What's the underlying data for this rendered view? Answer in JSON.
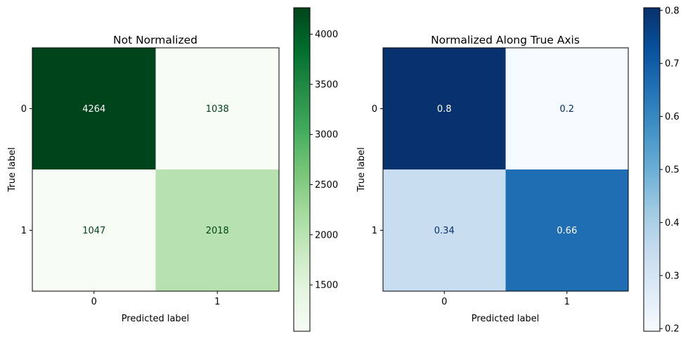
{
  "chart_data": [
    {
      "type": "heatmap",
      "title": "Not Normalized",
      "xlabel": "Predicted label",
      "ylabel": "True label",
      "x_categories": [
        "0",
        "1"
      ],
      "y_categories": [
        "0",
        "1"
      ],
      "matrix": [
        [
          4264,
          1038
        ],
        [
          1047,
          2018
        ]
      ],
      "cell_labels": [
        [
          "4264",
          "1038"
        ],
        [
          "1047",
          "2018"
        ]
      ],
      "colormap": "Greens",
      "colorbar": {
        "range": [
          1038,
          4264
        ],
        "ticks": [
          1500,
          2000,
          2500,
          3000,
          3500,
          4000
        ],
        "tick_labels": [
          "1500",
          "2000",
          "2500",
          "3000",
          "3500",
          "4000"
        ]
      },
      "colors": {
        "low": "#f7fcf5",
        "high": "#00441b"
      },
      "text_colors": {
        "dark": "#ffffff",
        "light": "#00441b"
      }
    },
    {
      "type": "heatmap",
      "title": "Normalized Along True Axis",
      "xlabel": "Predicted label",
      "ylabel": "True label",
      "x_categories": [
        "0",
        "1"
      ],
      "y_categories": [
        "0",
        "1"
      ],
      "matrix": [
        [
          0.8,
          0.2
        ],
        [
          0.34,
          0.66
        ]
      ],
      "cell_labels": [
        [
          "0.8",
          "0.2"
        ],
        [
          "0.34",
          "0.66"
        ]
      ],
      "colormap": "Blues",
      "colorbar": {
        "range": [
          0.195,
          0.805
        ],
        "ticks": [
          0.2,
          0.3,
          0.4,
          0.5,
          0.6,
          0.7,
          0.8
        ],
        "tick_labels": [
          "0.2",
          "0.3",
          "0.4",
          "0.5",
          "0.6",
          "0.7",
          "0.8"
        ]
      },
      "colors": {
        "low": "#f7fbff",
        "high": "#08306b"
      },
      "text_colors": {
        "dark": "#ffffff",
        "light": "#08306b"
      }
    }
  ]
}
